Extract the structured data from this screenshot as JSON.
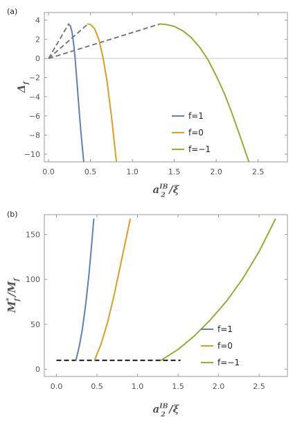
{
  "chart_data": [
    {
      "type": "line",
      "panel_label": "(a)",
      "xlabel": {
        "base": "a",
        "sub": "2",
        "sup": "IB",
        "tail": "/ξ"
      },
      "ylabel": {
        "base": "Δ",
        "sub": "f"
      },
      "xlim": [
        -0.05,
        2.85
      ],
      "ylim": [
        -10.8,
        4.8
      ],
      "xticks": [
        0.0,
        0.5,
        1.0,
        1.5,
        2.0,
        2.5
      ],
      "xtick_labels": [
        "0.0",
        "0.5",
        "1.0",
        "1.5",
        "2.0",
        "2.5"
      ],
      "yticks": [
        4,
        2,
        0,
        -2,
        -4,
        -6,
        -8,
        -10
      ],
      "ytick_labels": [
        "4",
        "2",
        "0",
        "−2",
        "−4",
        "−6",
        "−8",
        "−10"
      ],
      "grid": false,
      "zero_line": true,
      "legend_position": "lower-right",
      "series": [
        {
          "name": "f=1",
          "color": "#5e81b5",
          "x": [
            0.24,
            0.26,
            0.28,
            0.3,
            0.32,
            0.34,
            0.36,
            0.38,
            0.4,
            0.42
          ],
          "y": [
            3.6,
            3.4,
            2.8,
            1.5,
            -0.3,
            -2.5,
            -4.8,
            -7.0,
            -9.0,
            -10.8
          ]
        },
        {
          "name": "f=0",
          "color": "#e19c24",
          "x": [
            0.47,
            0.5,
            0.55,
            0.6,
            0.65,
            0.7,
            0.75,
            0.8,
            0.81
          ],
          "y": [
            3.6,
            3.55,
            3.1,
            2.0,
            0.1,
            -2.5,
            -6.0,
            -10.0,
            -10.8
          ]
        },
        {
          "name": "f=−1",
          "color": "#8fb032",
          "x": [
            1.33,
            1.4,
            1.5,
            1.6,
            1.7,
            1.8,
            1.9,
            2.0,
            2.1,
            2.2,
            2.3,
            2.39
          ],
          "y": [
            3.6,
            3.55,
            3.35,
            2.9,
            2.2,
            1.2,
            -0.1,
            -1.8,
            -3.7,
            -6.0,
            -8.5,
            -10.8
          ]
        }
      ],
      "dashed_lines": [
        {
          "color": "#7a7a7a",
          "x": [
            0.0,
            0.24
          ],
          "y": [
            0.0,
            3.6
          ]
        },
        {
          "color": "#7a7a7a",
          "x": [
            0.0,
            0.47
          ],
          "y": [
            0.0,
            3.6
          ]
        },
        {
          "color": "#7a7a7a",
          "x": [
            0.0,
            1.33
          ],
          "y": [
            0.0,
            3.6
          ]
        }
      ]
    },
    {
      "type": "line",
      "panel_label": "(b)",
      "xlabel": {
        "base": "a",
        "sub": "2",
        "sup": "IB",
        "tail": "/ξ"
      },
      "ylabel": {
        "base": "M",
        "sub": "f",
        "sup": "*",
        "tail": "/M",
        "tail_sub": "f"
      },
      "xlim": [
        -0.15,
        2.85
      ],
      "ylim": [
        -8,
        172
      ],
      "xticks": [
        0.0,
        0.5,
        1.0,
        1.5,
        2.0,
        2.5
      ],
      "xtick_labels": [
        "0.0",
        "0.5",
        "1.0",
        "1.5",
        "2.0",
        "2.5"
      ],
      "yticks": [
        0,
        50,
        100,
        150
      ],
      "ytick_labels": [
        "0",
        "50",
        "100",
        "150"
      ],
      "grid": false,
      "zero_line": false,
      "legend_position": "lower-right",
      "series": [
        {
          "name": "f=1",
          "color": "#5e81b5",
          "x": [
            0.24,
            0.28,
            0.32,
            0.36,
            0.4,
            0.44,
            0.46
          ],
          "y": [
            10,
            25,
            45,
            72,
            105,
            145,
            167
          ]
        },
        {
          "name": "f=0",
          "color": "#e19c24",
          "x": [
            0.47,
            0.55,
            0.63,
            0.71,
            0.79,
            0.87,
            0.91
          ],
          "y": [
            10,
            28,
            52,
            82,
            116,
            150,
            167
          ]
        },
        {
          "name": "f=−1",
          "color": "#8fb032",
          "x": [
            1.29,
            1.5,
            1.7,
            1.9,
            2.1,
            2.3,
            2.5,
            2.7
          ],
          "y": [
            10,
            22,
            37,
            55,
            76,
            101,
            131,
            167
          ]
        }
      ],
      "dashed_lines": [
        {
          "color": "#111111",
          "x": [
            0.0,
            1.53
          ],
          "y": [
            10,
            10
          ]
        }
      ]
    }
  ]
}
